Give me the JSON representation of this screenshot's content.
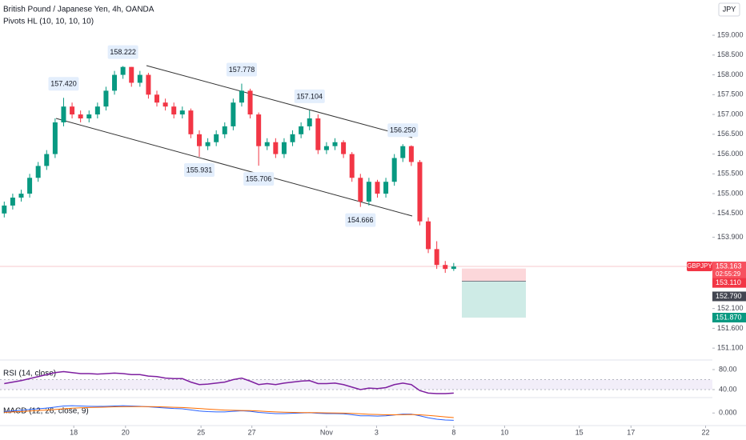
{
  "chart_data": {
    "type": "candlestick",
    "title": "British Pound / Japanese Yen, 4h, OANDA",
    "indicator": "Pivots HL (10, 10, 10, 10)",
    "currency": "JPY",
    "up_color": "#089981",
    "down_color": "#f23645",
    "open": [
      154.5,
      154.7,
      154.9,
      155.0,
      155.4,
      155.7,
      156.0,
      156.8,
      157.2,
      157.0,
      156.9,
      157.0,
      157.2,
      157.6,
      158.0,
      158.2,
      157.8,
      158.0,
      157.5,
      157.3,
      157.2,
      157.0,
      157.1,
      156.5,
      156.2,
      156.3,
      156.5,
      156.7,
      157.3,
      157.6,
      157.0,
      156.2,
      156.3,
      156.0,
      156.3,
      156.5,
      156.7,
      156.9,
      156.1,
      156.2,
      156.3,
      156.0,
      155.4,
      154.8,
      155.3,
      155.0,
      155.3,
      155.9,
      156.2,
      155.8,
      154.3,
      153.6,
      153.2,
      153.1
    ],
    "high": [
      154.8,
      155.0,
      155.1,
      155.5,
      155.8,
      156.1,
      156.9,
      157.42,
      157.3,
      157.1,
      157.1,
      157.3,
      157.7,
      158.1,
      158.222,
      158.2,
      158.1,
      158.05,
      157.6,
      157.4,
      157.3,
      157.2,
      157.15,
      156.6,
      156.4,
      156.6,
      156.8,
      157.4,
      157.778,
      157.65,
      157.05,
      156.4,
      156.4,
      156.4,
      156.6,
      156.8,
      157.104,
      157.0,
      156.3,
      156.4,
      156.35,
      156.05,
      155.5,
      155.4,
      155.35,
      155.4,
      156.0,
      156.25,
      156.22,
      155.85,
      154.4,
      153.8,
      153.3,
      153.25
    ],
    "low": [
      154.4,
      154.6,
      154.8,
      154.9,
      155.3,
      155.6,
      155.9,
      156.7,
      156.9,
      156.8,
      156.8,
      156.9,
      157.1,
      157.5,
      157.9,
      157.7,
      157.7,
      157.4,
      157.2,
      157.1,
      156.9,
      156.9,
      156.4,
      155.931,
      156.1,
      156.2,
      156.4,
      156.6,
      157.2,
      156.9,
      155.706,
      156.1,
      155.9,
      155.9,
      156.2,
      156.4,
      156.6,
      156.0,
      156.0,
      156.1,
      155.9,
      155.3,
      154.666,
      154.7,
      154.9,
      154.9,
      155.2,
      155.8,
      155.7,
      154.2,
      153.5,
      153.1,
      153.0,
      153.05
    ],
    "close": [
      154.7,
      154.9,
      155.0,
      155.4,
      155.7,
      156.0,
      156.8,
      157.2,
      157.0,
      156.9,
      157.0,
      157.2,
      157.6,
      158.0,
      158.2,
      157.8,
      158.0,
      157.5,
      157.3,
      157.2,
      157.0,
      157.1,
      156.5,
      156.2,
      156.3,
      156.5,
      156.7,
      157.3,
      157.6,
      157.0,
      156.2,
      156.3,
      156.0,
      156.3,
      156.5,
      156.7,
      156.9,
      156.1,
      156.2,
      156.3,
      156.0,
      155.4,
      154.8,
      155.3,
      155.0,
      155.3,
      155.9,
      156.2,
      155.8,
      154.3,
      153.6,
      153.2,
      153.1,
      153.16
    ],
    "pivots": [
      {
        "kind": "high",
        "value": 157.42,
        "label": "157.420"
      },
      {
        "kind": "high",
        "value": 158.222,
        "label": "158.222"
      },
      {
        "kind": "high",
        "value": 157.778,
        "label": "157.778"
      },
      {
        "kind": "high",
        "value": 157.104,
        "label": "157.104"
      },
      {
        "kind": "high",
        "value": 156.25,
        "label": "156.250"
      },
      {
        "kind": "low",
        "value": 155.931,
        "label": "155.931"
      },
      {
        "kind": "low",
        "value": 155.706,
        "label": "155.706"
      },
      {
        "kind": "low",
        "value": 154.666,
        "label": "154.666"
      }
    ],
    "xlim": [
      0,
      84
    ],
    "xticks": [
      {
        "value": 8.7,
        "label": "18"
      },
      {
        "value": 14.8,
        "label": "20"
      },
      {
        "value": 23.7,
        "label": "25"
      },
      {
        "value": 29.7,
        "label": "27"
      },
      {
        "value": 38.5,
        "label": "Nov"
      },
      {
        "value": 44.4,
        "label": "3"
      },
      {
        "value": 53.5,
        "label": "8"
      },
      {
        "value": 59.5,
        "label": "10"
      },
      {
        "value": 68.3,
        "label": "15"
      },
      {
        "value": 74.4,
        "label": "17"
      },
      {
        "value": 83.2,
        "label": "22"
      }
    ],
    "ylim": [
      150.8,
      159.89
    ],
    "yticks": [
      {
        "value": 159,
        "label": "159.000"
      },
      {
        "value": 158.5,
        "label": "158.500"
      },
      {
        "value": 158,
        "label": "158.000"
      },
      {
        "value": 157.5,
        "label": "157.500"
      },
      {
        "value": 157,
        "label": "157.000"
      },
      {
        "value": 156.5,
        "label": "156.500"
      },
      {
        "value": 156,
        "label": "156.000"
      },
      {
        "value": 155.5,
        "label": "155.500"
      },
      {
        "value": 155,
        "label": "155.000"
      },
      {
        "value": 154.5,
        "label": "154.500"
      },
      {
        "value": 153.9,
        "label": "153.900"
      },
      {
        "value": 152.1,
        "label": "152.100"
      },
      {
        "value": 151.6,
        "label": "151.600"
      },
      {
        "value": 151.1,
        "label": "151.100"
      }
    ],
    "symbol": "GBPJPY",
    "last_price": {
      "value": 153.163,
      "label": "153.163"
    },
    "countdown": "02:55:29",
    "position": {
      "stop": {
        "value": 153.11,
        "label": "153.110"
      },
      "entry": {
        "value": 152.79,
        "label": "152.790"
      },
      "target": {
        "value": 151.87,
        "label": "151.870"
      }
    },
    "rsi": {
      "title": "RSI (14, close)",
      "color": "#7e1fa0",
      "values": [
        52,
        55,
        58,
        62,
        66,
        70,
        74,
        76,
        74,
        72,
        72,
        71,
        72,
        73,
        72,
        70,
        70,
        67,
        66,
        63,
        62,
        62,
        55,
        50,
        51,
        53,
        55,
        60,
        63,
        57,
        50,
        52,
        50,
        53,
        55,
        57,
        58,
        52,
        52,
        53,
        50,
        45,
        40,
        43,
        42,
        44,
        50,
        53,
        50,
        38,
        33,
        32,
        32,
        33
      ],
      "band": [
        40,
        60
      ],
      "ylim": [
        24,
        99.2
      ],
      "yticks": [
        {
          "value": 80,
          "label": "80.00"
        },
        {
          "value": 40,
          "label": "40.00"
        }
      ]
    },
    "macd": {
      "title": "MACD (12, 26, close, 9)",
      "series": [
        {
          "color": "#2962ff",
          "values": [
            0.1,
            0.15,
            0.2,
            0.25,
            0.3,
            0.35,
            0.42,
            0.5,
            0.52,
            0.5,
            0.48,
            0.47,
            0.48,
            0.5,
            0.52,
            0.5,
            0.48,
            0.44,
            0.4,
            0.36,
            0.32,
            0.3,
            0.22,
            0.14,
            0.1,
            0.08,
            0.08,
            0.12,
            0.16,
            0.12,
            0.04,
            0.0,
            -0.04,
            -0.04,
            -0.02,
            0.0,
            0.02,
            -0.02,
            -0.04,
            -0.04,
            -0.06,
            -0.12,
            -0.2,
            -0.2,
            -0.22,
            -0.2,
            -0.14,
            -0.08,
            -0.08,
            -0.2,
            -0.34,
            -0.44,
            -0.5,
            -0.52
          ]
        },
        {
          "color": "#ff6d00",
          "values": [
            0.05,
            0.08,
            0.11,
            0.14,
            0.18,
            0.21,
            0.25,
            0.3,
            0.34,
            0.37,
            0.39,
            0.41,
            0.42,
            0.44,
            0.45,
            0.46,
            0.46,
            0.46,
            0.45,
            0.43,
            0.41,
            0.39,
            0.36,
            0.32,
            0.28,
            0.24,
            0.21,
            0.19,
            0.18,
            0.17,
            0.14,
            0.11,
            0.08,
            0.06,
            0.04,
            0.03,
            0.03,
            0.02,
            0.01,
            0.0,
            -0.01,
            -0.03,
            -0.06,
            -0.09,
            -0.11,
            -0.13,
            -0.13,
            -0.12,
            -0.11,
            -0.13,
            -0.17,
            -0.22,
            -0.28,
            -0.33
          ]
        }
      ],
      "ylim": [
        -0.9,
        1.1
      ],
      "yticks": [
        {
          "value": 0,
          "label": "0.000"
        }
      ]
    }
  }
}
